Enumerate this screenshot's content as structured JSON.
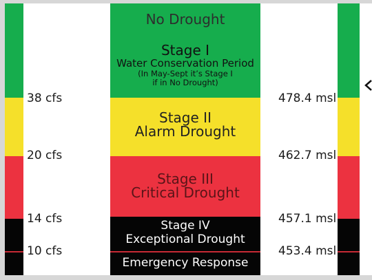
{
  "left_flows": [
    "38 cfs",
    "20 cfs",
    "14 cfs",
    "10 cfs"
  ],
  "right_levels": [
    "478.4 msl",
    "462.7 msl",
    "457.1 msl",
    "453.4 msl"
  ],
  "stages": {
    "no_drought": "No Drought",
    "stage1_title": "Stage I",
    "stage1_sub": "Water Conservation Period",
    "stage1_note1": "(In May-Sept it’s Stage I",
    "stage1_note2": "if in No Drought)",
    "stage2_title": "Stage II",
    "stage2_sub": "Alarm Drought",
    "stage3_title": "Stage III",
    "stage3_sub": "Critical Drought",
    "stage4_title": "Stage IV",
    "stage4_sub": "Exceptional Drought",
    "emergency": "Emergency Response"
  },
  "colors": {
    "green": "#16ad4d",
    "yellow": "#f5e02a",
    "red": "#ec3240",
    "black": "#050505"
  },
  "icons": {
    "pointer": "arrow-left-icon"
  }
}
